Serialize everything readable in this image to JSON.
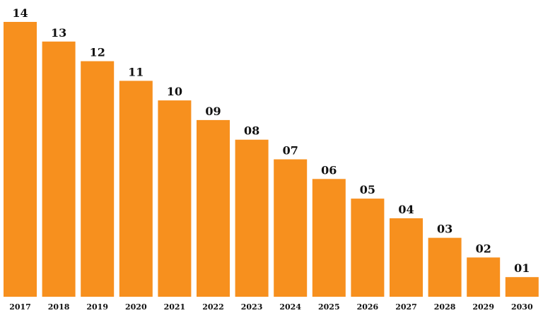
{
  "chart_data": {
    "type": "bar",
    "categories": [
      "2017",
      "2018",
      "2019",
      "2020",
      "2021",
      "2022",
      "2023",
      "2024",
      "2025",
      "2026",
      "2027",
      "2028",
      "2029",
      "2030"
    ],
    "values": [
      14,
      13,
      12,
      11,
      10,
      9,
      8,
      7,
      6,
      5,
      4,
      3,
      2,
      1
    ],
    "value_labels": [
      "14",
      "13",
      "12",
      "11",
      "10",
      "09",
      "08",
      "07",
      "06",
      "05",
      "04",
      "03",
      "02",
      "01"
    ],
    "ylim": [
      0,
      14
    ],
    "grid": false,
    "legend": "none",
    "bar_color": "#F7901E",
    "label_color": "#111111"
  }
}
